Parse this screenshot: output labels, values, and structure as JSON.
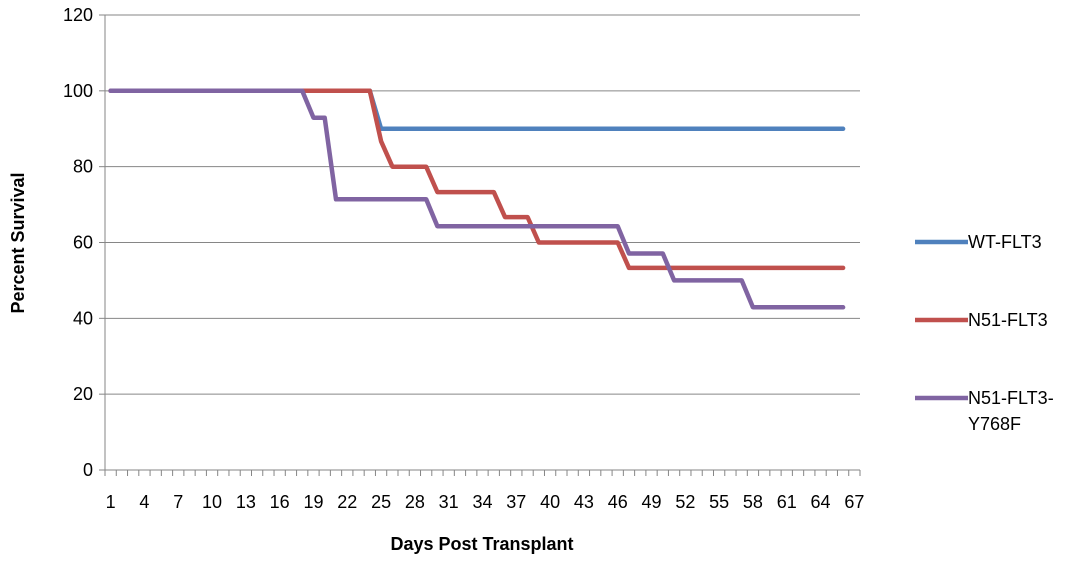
{
  "chart_data": {
    "type": "line",
    "xlabel": "Days Post Transplant",
    "ylabel": "Percent Survival",
    "ylim": [
      0,
      120
    ],
    "yticks": [
      0,
      20,
      40,
      60,
      80,
      100,
      120
    ],
    "xlim": [
      1,
      67
    ],
    "xticks": [
      1,
      4,
      7,
      10,
      13,
      16,
      19,
      22,
      25,
      28,
      31,
      34,
      37,
      40,
      43,
      46,
      49,
      52,
      55,
      58,
      61,
      64,
      67
    ],
    "grid": "horizontal",
    "legend_position": "right",
    "series": [
      {
        "name": "WT-FLT3",
        "color": "#4F81BD",
        "x": [
          1,
          24,
          25,
          66
        ],
        "y": [
          100,
          100,
          90,
          90
        ]
      },
      {
        "name": "N51-FLT3",
        "color": "#C0504D",
        "x": [
          1,
          24,
          25,
          26,
          29,
          30,
          35,
          36,
          38,
          39,
          46,
          47,
          66
        ],
        "y": [
          100,
          100,
          86.7,
          80,
          80,
          73.3,
          73.3,
          66.7,
          66.7,
          60,
          60,
          53.3,
          53.3
        ]
      },
      {
        "name": "N51-FLT3-Y768F",
        "color": "#8064A2",
        "x": [
          1,
          18,
          19,
          20,
          21,
          29,
          30,
          46,
          47,
          50,
          51,
          57,
          58,
          66
        ],
        "y": [
          100,
          100,
          92.9,
          92.9,
          71.4,
          71.4,
          64.3,
          64.3,
          57.1,
          57.1,
          50,
          50,
          42.9,
          42.9
        ]
      }
    ],
    "legend_lines": [
      [
        "WT-FLT3"
      ],
      [
        "N51-FLT3"
      ],
      [
        "N51-FLT3-",
        "Y768F"
      ]
    ]
  }
}
